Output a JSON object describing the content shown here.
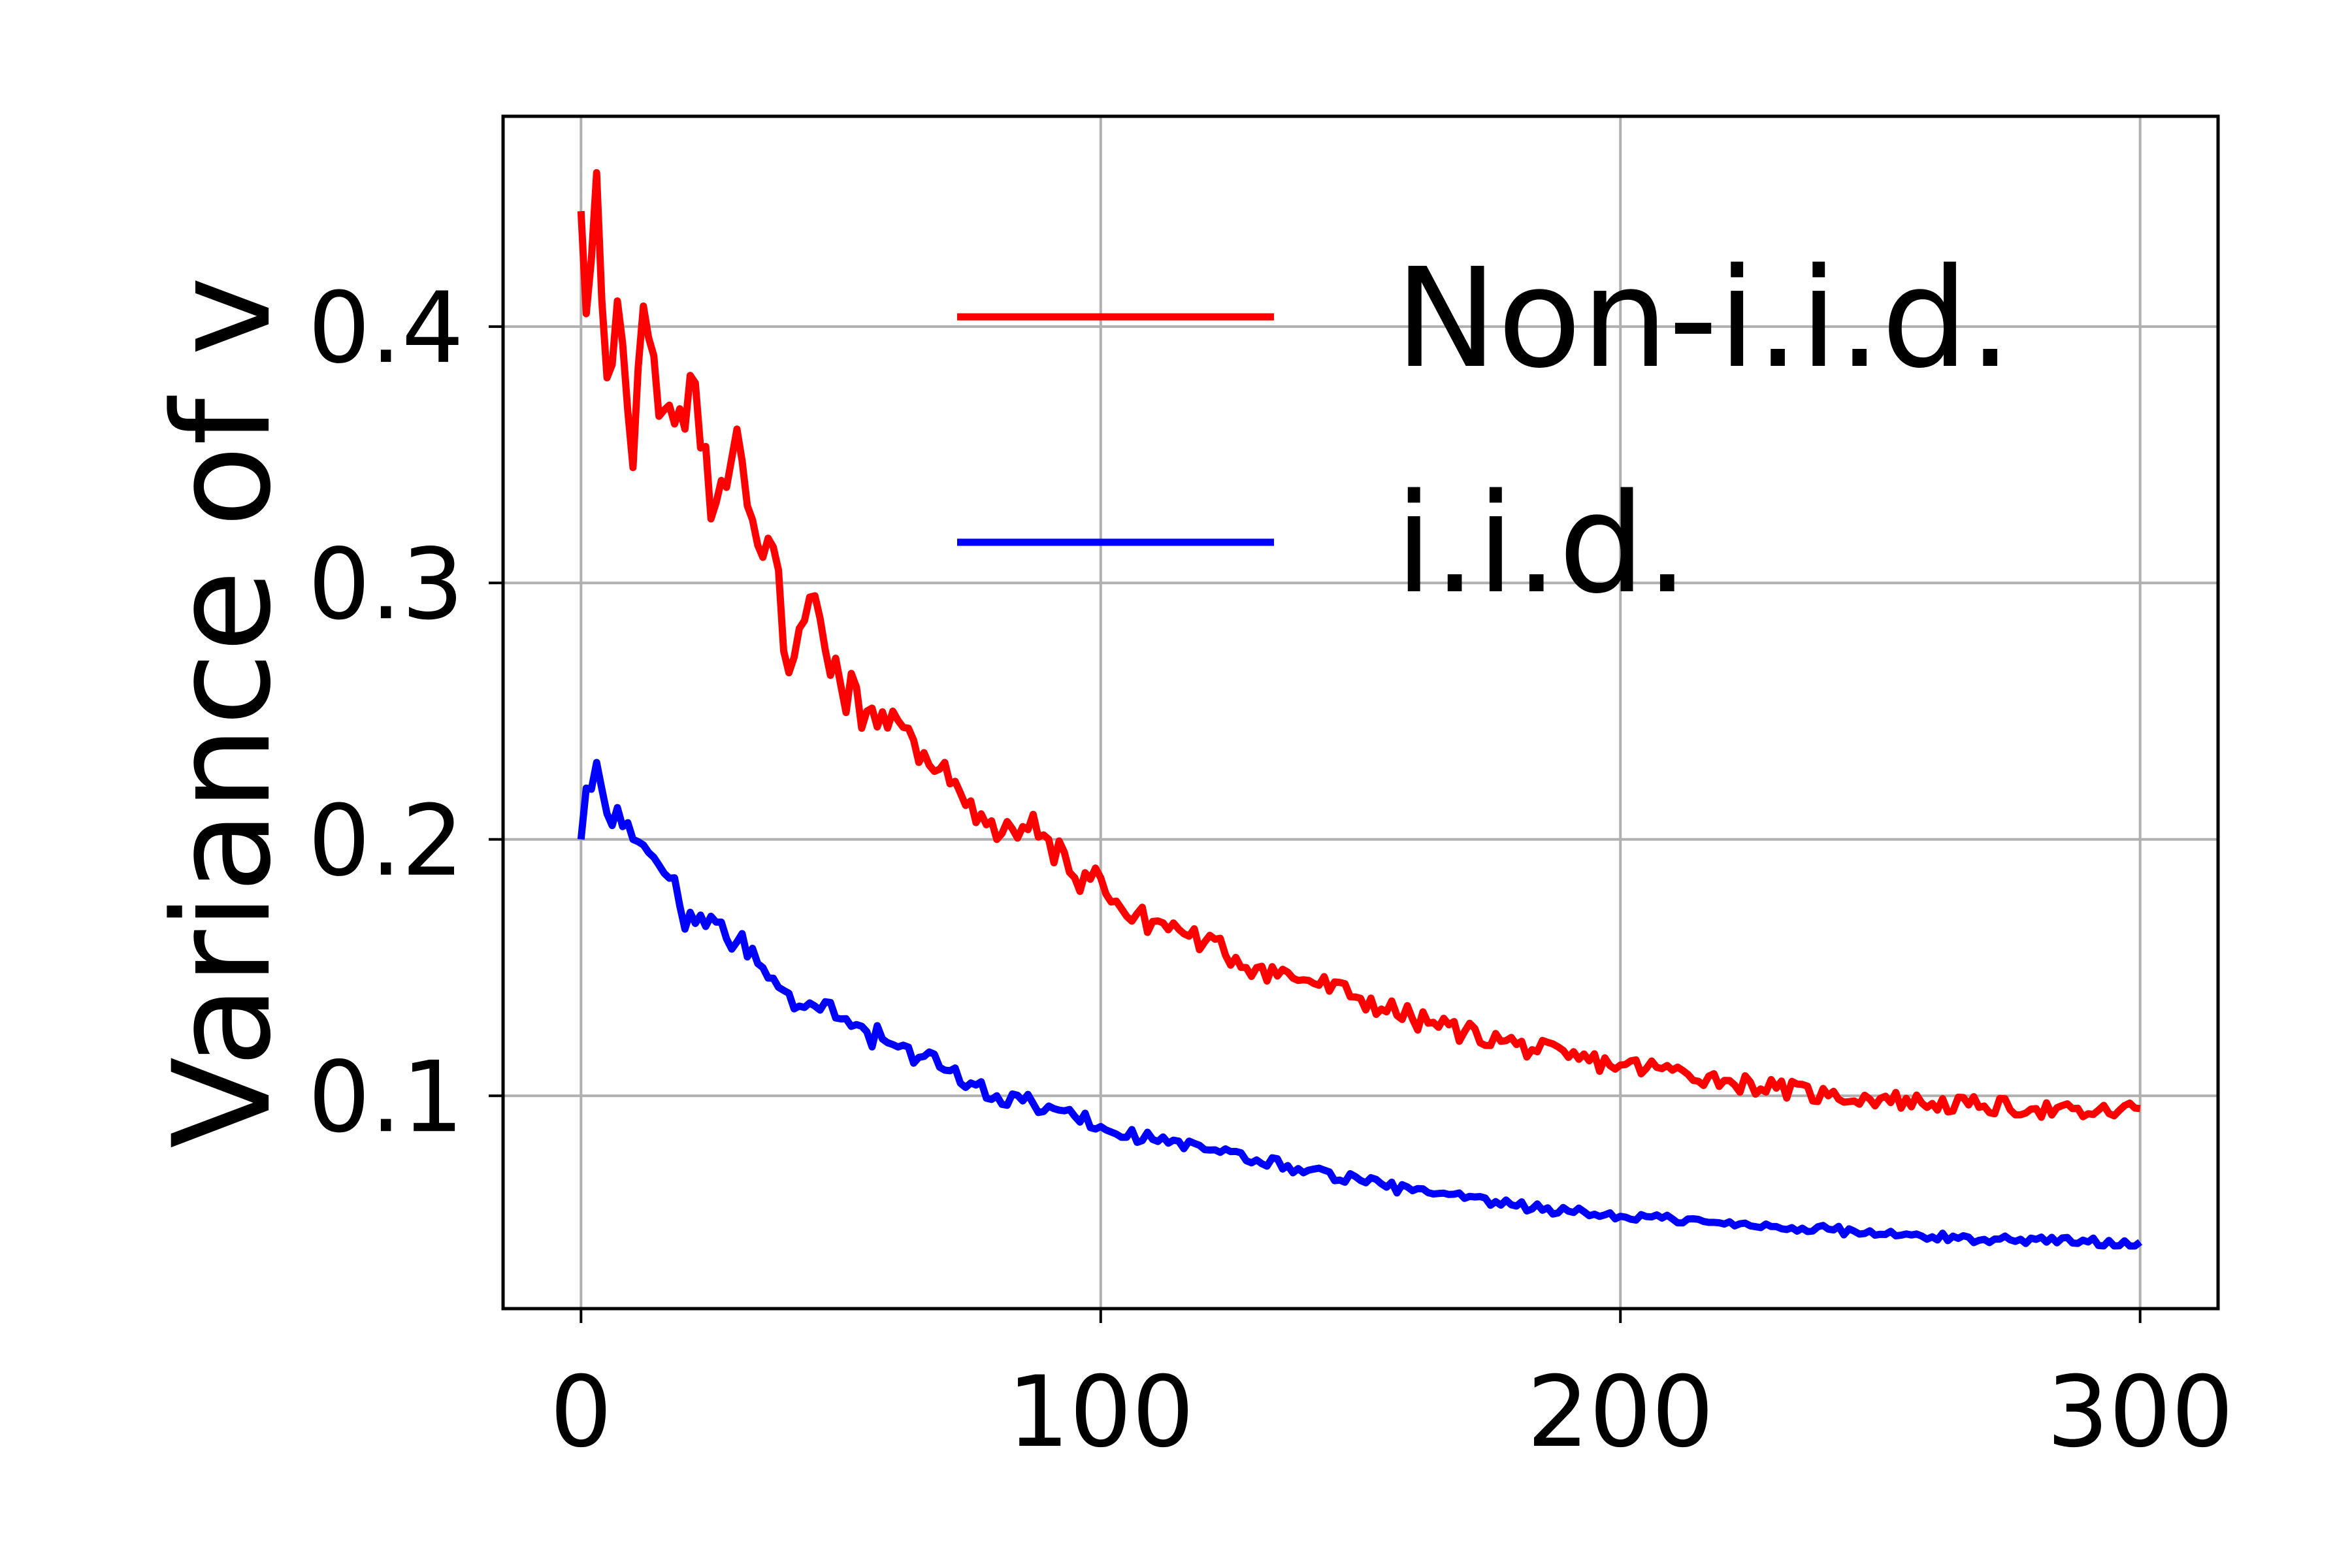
{
  "chart_data": {
    "type": "line",
    "title": "",
    "xlabel": "",
    "ylabel": "Variance of v",
    "xlim": [
      -15,
      315
    ],
    "ylim": [
      0.017,
      0.482
    ],
    "xticks": [
      0,
      100,
      200,
      300
    ],
    "xtick_labels": [
      "0",
      "100",
      "200",
      "300"
    ],
    "yticks": [
      0.1,
      0.2,
      0.3,
      0.4
    ],
    "ytick_labels": [
      "0.1",
      "0.2",
      "0.3",
      "0.4"
    ],
    "grid": true,
    "legend_position": "upper-right",
    "series": [
      {
        "name": "Non-i.i.d.",
        "color": "#ff0000",
        "anchors": [
          [
            0,
            0.445
          ],
          [
            1,
            0.405
          ],
          [
            3,
            0.46
          ],
          [
            5,
            0.38
          ],
          [
            7,
            0.41
          ],
          [
            10,
            0.345
          ],
          [
            12,
            0.408
          ],
          [
            15,
            0.365
          ],
          [
            20,
            0.36
          ],
          [
            22,
            0.378
          ],
          [
            25,
            0.325
          ],
          [
            30,
            0.36
          ],
          [
            35,
            0.31
          ],
          [
            38,
            0.305
          ],
          [
            40,
            0.265
          ],
          [
            45,
            0.295
          ],
          [
            50,
            0.26
          ],
          [
            55,
            0.25
          ],
          [
            60,
            0.25
          ],
          [
            65,
            0.23
          ],
          [
            70,
            0.23
          ],
          [
            75,
            0.215
          ],
          [
            80,
            0.2
          ],
          [
            85,
            0.205
          ],
          [
            90,
            0.2
          ],
          [
            95,
            0.185
          ],
          [
            100,
            0.185
          ],
          [
            105,
            0.17
          ],
          [
            110,
            0.168
          ],
          [
            115,
            0.165
          ],
          [
            120,
            0.16
          ],
          [
            130,
            0.15
          ],
          [
            140,
            0.145
          ],
          [
            150,
            0.138
          ],
          [
            160,
            0.13
          ],
          [
            170,
            0.125
          ],
          [
            180,
            0.12
          ],
          [
            190,
            0.115
          ],
          [
            200,
            0.112
          ],
          [
            210,
            0.11
          ],
          [
            220,
            0.106
          ],
          [
            230,
            0.103
          ],
          [
            240,
            0.1
          ],
          [
            250,
            0.099
          ],
          [
            260,
            0.097
          ],
          [
            270,
            0.096
          ],
          [
            280,
            0.095
          ],
          [
            290,
            0.093
          ],
          [
            300,
            0.095
          ]
        ],
        "noise_amplitude": [
          [
            0,
            0.025
          ],
          [
            60,
            0.02
          ],
          [
            100,
            0.01
          ],
          [
            200,
            0.007
          ],
          [
            300,
            0.006
          ]
        ]
      },
      {
        "name": "i.i.d.",
        "color": "#0000ff",
        "anchors": [
          [
            0,
            0.2
          ],
          [
            1,
            0.22
          ],
          [
            3,
            0.23
          ],
          [
            5,
            0.21
          ],
          [
            8,
            0.205
          ],
          [
            10,
            0.2
          ],
          [
            15,
            0.19
          ],
          [
            18,
            0.185
          ],
          [
            20,
            0.165
          ],
          [
            25,
            0.17
          ],
          [
            30,
            0.16
          ],
          [
            35,
            0.15
          ],
          [
            40,
            0.14
          ],
          [
            45,
            0.135
          ],
          [
            50,
            0.13
          ],
          [
            55,
            0.125
          ],
          [
            60,
            0.12
          ],
          [
            65,
            0.115
          ],
          [
            70,
            0.11
          ],
          [
            75,
            0.105
          ],
          [
            80,
            0.1
          ],
          [
            85,
            0.098
          ],
          [
            90,
            0.096
          ],
          [
            95,
            0.092
          ],
          [
            100,
            0.088
          ],
          [
            110,
            0.083
          ],
          [
            120,
            0.079
          ],
          [
            130,
            0.075
          ],
          [
            140,
            0.071
          ],
          [
            150,
            0.067
          ],
          [
            160,
            0.063
          ],
          [
            170,
            0.06
          ],
          [
            180,
            0.057
          ],
          [
            190,
            0.055
          ],
          [
            200,
            0.053
          ],
          [
            210,
            0.052
          ],
          [
            220,
            0.05
          ],
          [
            230,
            0.049
          ],
          [
            240,
            0.048
          ],
          [
            250,
            0.046
          ],
          [
            260,
            0.045
          ],
          [
            270,
            0.044
          ],
          [
            280,
            0.044
          ],
          [
            290,
            0.043
          ],
          [
            300,
            0.043
          ]
        ],
        "noise_amplitude": [
          [
            0,
            0.012
          ],
          [
            60,
            0.009
          ],
          [
            100,
            0.005
          ],
          [
            200,
            0.003
          ],
          [
            300,
            0.003
          ]
        ]
      }
    ]
  }
}
